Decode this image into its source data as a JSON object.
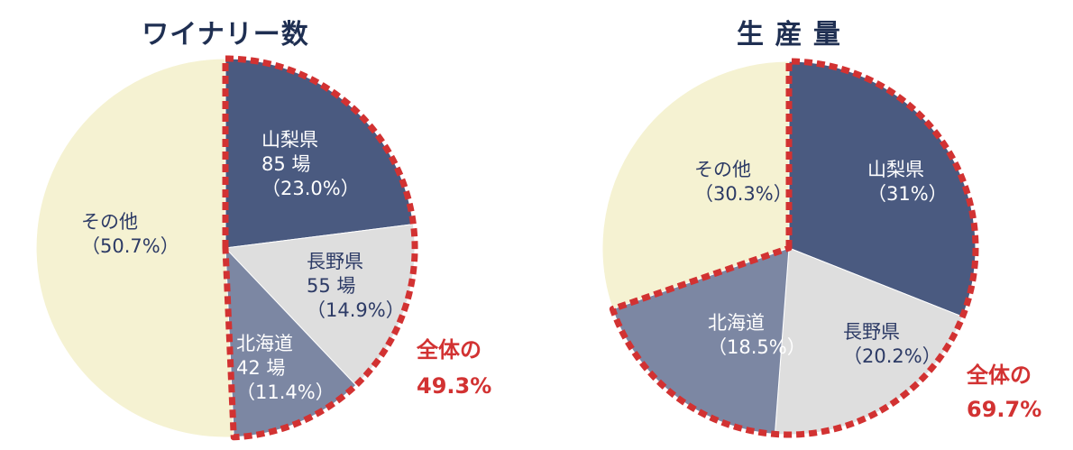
{
  "chart_data": [
    {
      "type": "pie",
      "title": "ワイナリー数",
      "slices": [
        {
          "label": "山梨県",
          "count": "85 場",
          "pct_text": "（23.0%）",
          "value": 23.0,
          "color": "#4a5a80",
          "text_color": "light"
        },
        {
          "label": "長野県",
          "count": "55 場",
          "pct_text": "（14.9%）",
          "value": 14.9,
          "color": "#dedede",
          "text_color": "dark"
        },
        {
          "label": "北海道",
          "count": "42 場",
          "pct_text": "（11.4%）",
          "value": 11.4,
          "color": "#7c87a3",
          "text_color": "light"
        },
        {
          "label": "その他",
          "count": "",
          "pct_text": "（50.7%）",
          "value": 50.7,
          "color": "#f5f2d2",
          "text_color": "dark"
        }
      ],
      "highlight": {
        "text_line1": "全体の",
        "text_line2": "49.3%",
        "color": "#d23232"
      }
    },
    {
      "type": "pie",
      "title": "生 産 量",
      "slices": [
        {
          "label": "山梨県",
          "count": "",
          "pct_text": "（31%）",
          "value": 31.0,
          "color": "#4a5a80",
          "text_color": "light"
        },
        {
          "label": "長野県",
          "count": "",
          "pct_text": "（20.2%）",
          "value": 20.2,
          "color": "#dedede",
          "text_color": "dark"
        },
        {
          "label": "北海道",
          "count": "",
          "pct_text": "（18.5%）",
          "value": 18.5,
          "color": "#7c87a3",
          "text_color": "light"
        },
        {
          "label": "その他",
          "count": "",
          "pct_text": "（30.3%）",
          "value": 30.3,
          "color": "#f5f2d2",
          "text_color": "dark"
        }
      ],
      "highlight": {
        "text_line1": "全体の",
        "text_line2": "69.7%",
        "color": "#d23232"
      }
    }
  ]
}
